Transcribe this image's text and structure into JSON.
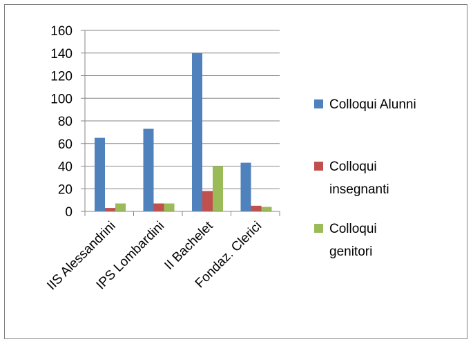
{
  "chart_data": {
    "type": "bar",
    "title": "",
    "xlabel": "",
    "ylabel": "",
    "categories": [
      "IIS Alessandrini",
      "IPS Lombardini",
      "II Bachelet",
      "Fondaz. Clerici"
    ],
    "series": [
      {
        "name": "Colloqui Alunni",
        "color": "#4f81bd",
        "values": [
          65,
          73,
          140,
          43
        ]
      },
      {
        "name": "Colloqui insegnanti",
        "color": "#c0504d",
        "values": [
          3,
          7,
          18,
          5
        ]
      },
      {
        "name": "Colloqui genitori",
        "color": "#9bbb59",
        "values": [
          7,
          7,
          40,
          4
        ]
      }
    ],
    "ylim": [
      0,
      160
    ],
    "yticks": [
      "0",
      "20",
      "40",
      "60",
      "80",
      "100",
      "120",
      "140",
      "160"
    ],
    "grid": true,
    "legend_position": "right"
  },
  "legend": {
    "items": [
      {
        "lines": [
          "Colloqui Alunni"
        ]
      },
      {
        "lines": [
          "Colloqui",
          "insegnanti"
        ]
      },
      {
        "lines": [
          "Colloqui",
          "genitori"
        ]
      }
    ]
  }
}
